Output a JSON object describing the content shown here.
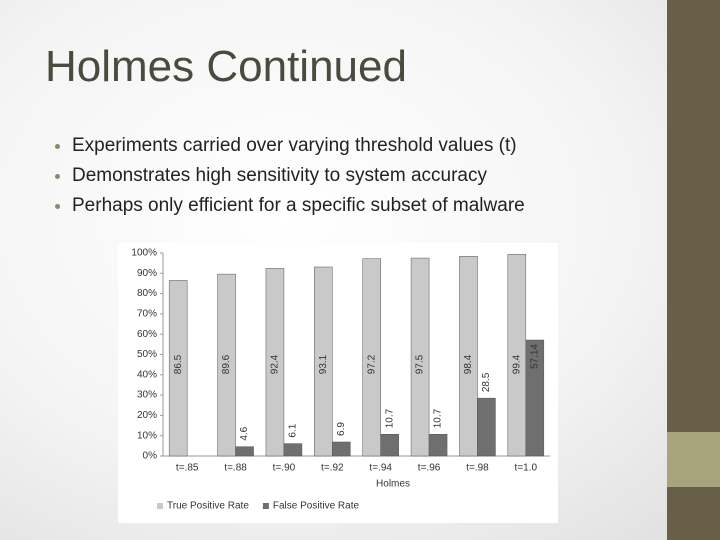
{
  "slide": {
    "title": "Holmes Continued",
    "bullets": [
      "Experiments carried over varying threshold values (t)",
      "Demonstrates high sensitivity to system accuracy",
      "Perhaps only efficient for a specific subset of malware"
    ]
  },
  "chart_data": {
    "type": "bar",
    "x_label": "Holmes",
    "categories": [
      "t=.85",
      "t=.88",
      "t=.90",
      "t=.92",
      "t=.94",
      "t=.96",
      "t=.98",
      "t=1.0"
    ],
    "series": [
      {
        "name": "True Positive Rate",
        "color": "#c9c9c9",
        "values": [
          86.5,
          89.6,
          92.4,
          93.1,
          97.2,
          97.5,
          98.4,
          99.4
        ]
      },
      {
        "name": "False Positive Rate",
        "color": "#6f6f6f",
        "values": [
          null,
          4.6,
          6.1,
          6.9,
          10.7,
          10.7,
          28.5,
          57.14
        ]
      }
    ],
    "ylim": [
      0,
      100
    ],
    "yticks": [
      {
        "value": 0,
        "label": "0%"
      },
      {
        "value": 10,
        "label": "10%"
      },
      {
        "value": 20,
        "label": "20%"
      },
      {
        "value": 30,
        "label": "30%"
      },
      {
        "value": 40,
        "label": "40%"
      },
      {
        "value": 50,
        "label": "50%"
      },
      {
        "value": 60,
        "label": "60%"
      },
      {
        "value": 70,
        "label": "70%"
      },
      {
        "value": 80,
        "label": "80%"
      },
      {
        "value": 90,
        "label": "90%"
      },
      {
        "value": 100,
        "label": "100%"
      }
    ],
    "legend": "bottom"
  }
}
